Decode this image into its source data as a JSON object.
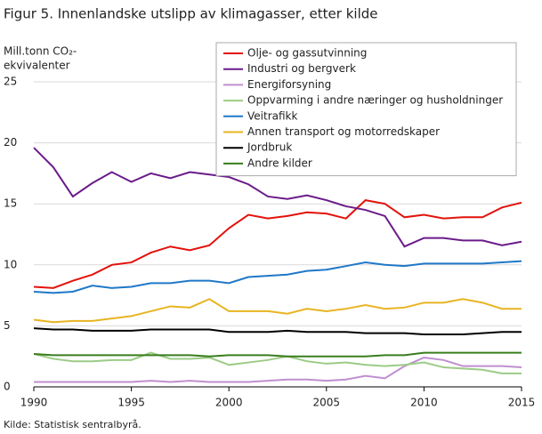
{
  "chart_data": {
    "type": "line",
    "title": "Figur 5. Innenlandske utslipp av klimagasser, etter kilde",
    "y_label": [
      "Mill.tonn CO₂-",
      "ekvivalenter"
    ],
    "source": "Kilde: Statistisk sentralbyrå.",
    "x": [
      1990,
      1991,
      1992,
      1993,
      1994,
      1995,
      1996,
      1997,
      1998,
      1999,
      2000,
      2001,
      2002,
      2003,
      2004,
      2005,
      2006,
      2007,
      2008,
      2009,
      2010,
      2011,
      2012,
      2013,
      2014,
      2015
    ],
    "xlim": [
      1990,
      2015
    ],
    "xticks": [
      1990,
      1995,
      2000,
      2005,
      2010,
      2015
    ],
    "ylim": [
      0,
      25
    ],
    "yticks": [
      0,
      5,
      10,
      15,
      20,
      25
    ],
    "grid": true,
    "legend": "top-right",
    "series": [
      {
        "name": "Olje- og gassutvinning",
        "color": "#e3120b",
        "values": [
          8.2,
          8.1,
          8.7,
          9.2,
          10.0,
          10.2,
          11.0,
          11.5,
          11.2,
          11.6,
          13.0,
          14.1,
          13.8,
          14.0,
          14.3,
          14.2,
          13.8,
          15.3,
          15.0,
          13.9,
          14.1,
          13.8,
          13.9,
          13.9,
          14.7,
          15.1
        ]
      },
      {
        "name": "Industri og bergverk",
        "color": "#6a1b8a",
        "values": [
          19.6,
          18.0,
          15.6,
          16.7,
          17.6,
          16.8,
          17.5,
          17.1,
          17.6,
          17.4,
          17.2,
          16.6,
          15.6,
          15.4,
          15.7,
          15.3,
          14.8,
          14.5,
          14.0,
          11.5,
          12.2,
          12.2,
          12.0,
          12.0,
          11.6,
          11.9
        ]
      },
      {
        "name": "Energiforsyning",
        "color": "#c08fcf",
        "values": [
          0.4,
          0.4,
          0.4,
          0.4,
          0.4,
          0.4,
          0.5,
          0.4,
          0.5,
          0.4,
          0.4,
          0.4,
          0.5,
          0.6,
          0.6,
          0.5,
          0.6,
          0.9,
          0.7,
          1.7,
          2.4,
          2.2,
          1.7,
          1.7,
          1.7,
          1.6
        ]
      },
      {
        "name": "Oppvarming i andre næringer og husholdninger",
        "color": "#9ccb86",
        "values": [
          2.7,
          2.3,
          2.1,
          2.1,
          2.2,
          2.2,
          2.8,
          2.3,
          2.3,
          2.4,
          1.8,
          2.0,
          2.2,
          2.5,
          2.1,
          1.9,
          2.0,
          1.8,
          1.7,
          1.8,
          2.0,
          1.6,
          1.5,
          1.4,
          1.1,
          1.1
        ]
      },
      {
        "name": "Veitrafikk",
        "color": "#1f78c8",
        "values": [
          7.8,
          7.7,
          7.8,
          8.3,
          8.1,
          8.2,
          8.5,
          8.5,
          8.7,
          8.7,
          8.5,
          9.0,
          9.1,
          9.2,
          9.5,
          9.6,
          9.9,
          10.2,
          10.0,
          9.9,
          10.1,
          10.1,
          10.1,
          10.1,
          10.2,
          10.3
        ]
      },
      {
        "name": "Annen transport og motorredskaper",
        "color": "#e8b422",
        "values": [
          5.5,
          5.3,
          5.4,
          5.4,
          5.6,
          5.8,
          6.2,
          6.6,
          6.5,
          7.2,
          6.2,
          6.2,
          6.2,
          6.0,
          6.4,
          6.2,
          6.4,
          6.7,
          6.4,
          6.5,
          6.9,
          6.9,
          7.2,
          6.9,
          6.4,
          6.4
        ]
      },
      {
        "name": "Jordbruk",
        "color": "#000000",
        "values": [
          4.8,
          4.7,
          4.7,
          4.6,
          4.6,
          4.6,
          4.7,
          4.7,
          4.7,
          4.7,
          4.5,
          4.5,
          4.5,
          4.6,
          4.5,
          4.5,
          4.5,
          4.4,
          4.4,
          4.4,
          4.3,
          4.3,
          4.3,
          4.4,
          4.5,
          4.5
        ]
      },
      {
        "name": "Andre kilder",
        "color": "#3a7d1e",
        "values": [
          2.7,
          2.6,
          2.6,
          2.6,
          2.6,
          2.6,
          2.6,
          2.6,
          2.6,
          2.5,
          2.6,
          2.6,
          2.6,
          2.5,
          2.5,
          2.5,
          2.5,
          2.5,
          2.6,
          2.6,
          2.8,
          2.8,
          2.8,
          2.8,
          2.8,
          2.8
        ]
      }
    ]
  }
}
